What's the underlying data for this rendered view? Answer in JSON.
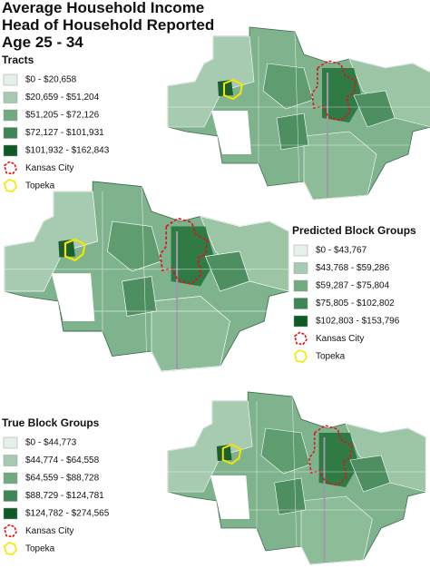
{
  "title": [
    "Average Household Income",
    "Head of Household Reported",
    "Age 25 - 34"
  ],
  "legends": [
    {
      "title": "Tracts",
      "items": [
        "$0 - $20,658",
        "$20,659 - $51,204",
        "$51,205 - $72,126",
        "$72,127 - $101,931",
        "$101,932 - $162,843",
        "Kansas City",
        "Topeka"
      ]
    },
    {
      "title": "Predicted Block Groups",
      "items": [
        "$0 - $43,767",
        "$43,768 - $59,286",
        "$59,287 - $75,804",
        "$75,805 - $102,802",
        "$102,803 - $153,796",
        "Kansas City",
        "Topeka"
      ]
    },
    {
      "title": "True Block Groups",
      "items": [
        "$0 - $44,773",
        "$44,774 - $64,558",
        "$64,559 - $88,728",
        "$88,729 - $124,781",
        "$124,782 - $274,565",
        "Kansas City",
        "Topeka"
      ]
    }
  ]
}
